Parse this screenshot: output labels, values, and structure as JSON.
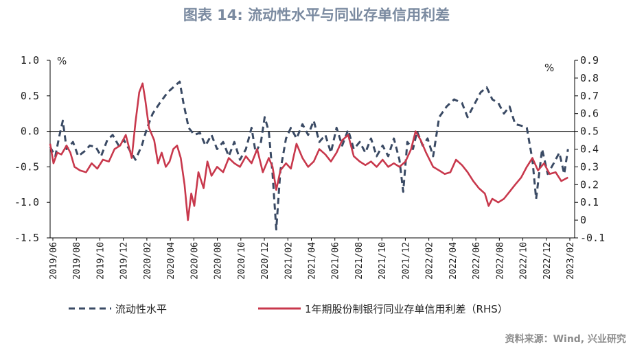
{
  "header": {
    "title": "图表 14: 流动性水平与同业存单信用利差"
  },
  "footer": {
    "source": "资料来源：Wind, 兴业研究"
  },
  "colors": {
    "liquidity": "#3a4a64",
    "spread": "#c8384c",
    "axis": "#000000"
  },
  "chart_data": {
    "type": "line",
    "title": "图表 14: 流动性水平与同业存单信用利差",
    "xlabel": "",
    "ylabel": "%",
    "y2label": "%",
    "x_tick_labels": [
      "2019/06",
      "2019/08",
      "2019/10",
      "2019/12",
      "2020/02",
      "2020/04",
      "2020/06",
      "2020/08",
      "2020/10",
      "2020/12",
      "2021/02",
      "2021/04",
      "2021/06",
      "2021/08",
      "2021/10",
      "2021/12",
      "2022/02",
      "2022/04",
      "2022/06",
      "2022/08",
      "2022/10",
      "2022/12",
      "2023/02"
    ],
    "y_ticks": [
      "1.0",
      "0.5",
      "0.0",
      "-0.5",
      "-1.0",
      "-1.5"
    ],
    "y2_ticks": [
      "0.9",
      "0.8",
      "0.7",
      "0.6",
      "0.5",
      "0.4",
      "0.3",
      "0.2",
      "0.1",
      "0",
      "-0.1"
    ],
    "ylim": [
      -1.5,
      1.0
    ],
    "y2lim": [
      -0.1,
      0.9
    ],
    "grid": false,
    "legend_position": "bottom",
    "series": [
      {
        "name": "流动性水平",
        "axis": "left",
        "style": "dashed",
        "points": [
          [
            "2019/06/01",
            -0.22
          ],
          [
            "2019/06/15",
            -0.35
          ],
          [
            "2019/06/25",
            -0.08
          ],
          [
            "2019/07/05",
            0.15
          ],
          [
            "2019/07/15",
            -0.25
          ],
          [
            "2019/08/01",
            -0.15
          ],
          [
            "2019/08/15",
            -0.35
          ],
          [
            "2019/09/01",
            -0.28
          ],
          [
            "2019/09/15",
            -0.2
          ],
          [
            "2019/10/01",
            -0.22
          ],
          [
            "2019/10/15",
            -0.35
          ],
          [
            "2019/11/01",
            -0.12
          ],
          [
            "2019/11/15",
            -0.05
          ],
          [
            "2019/12/01",
            -0.2
          ],
          [
            "2019/12/15",
            -0.12
          ],
          [
            "2020/01/01",
            -0.28
          ],
          [
            "2020/01/15",
            -0.4
          ],
          [
            "2020/02/01",
            -0.2
          ],
          [
            "2020/02/15",
            0.05
          ],
          [
            "2020/03/01",
            0.25
          ],
          [
            "2020/03/20",
            0.4
          ],
          [
            "2020/04/10",
            0.55
          ],
          [
            "2020/05/01",
            0.65
          ],
          [
            "2020/05/12",
            0.7
          ],
          [
            "2020/05/22",
            0.4
          ],
          [
            "2020/06/05",
            0.05
          ],
          [
            "2020/06/20",
            -0.05
          ],
          [
            "2020/07/05",
            -0.02
          ],
          [
            "2020/07/20",
            -0.2
          ],
          [
            "2020/08/05",
            -0.05
          ],
          [
            "2020/08/20",
            -0.25
          ],
          [
            "2020/09/05",
            -0.15
          ],
          [
            "2020/09/20",
            -0.35
          ],
          [
            "2020/10/05",
            -0.15
          ],
          [
            "2020/10/20",
            -0.4
          ],
          [
            "2020/11/05",
            -0.25
          ],
          [
            "2020/11/20",
            0.05
          ],
          [
            "2020/12/01",
            -0.3
          ],
          [
            "2020/12/15",
            -0.15
          ],
          [
            "2020/12/25",
            0.2
          ],
          [
            "2021/01/05",
            0.0
          ],
          [
            "2021/01/15",
            -0.6
          ],
          [
            "2021/01/25",
            -1.38
          ],
          [
            "2021/02/05",
            -0.55
          ],
          [
            "2021/02/20",
            -0.1
          ],
          [
            "2021/03/05",
            0.05
          ],
          [
            "2021/03/20",
            -0.1
          ],
          [
            "2021/04/05",
            0.1
          ],
          [
            "2021/04/20",
            -0.05
          ],
          [
            "2021/05/05",
            0.15
          ],
          [
            "2021/05/20",
            -0.15
          ],
          [
            "2021/06/05",
            -0.05
          ],
          [
            "2021/06/20",
            -0.3
          ],
          [
            "2021/07/05",
            0.05
          ],
          [
            "2021/07/20",
            -0.2
          ],
          [
            "2021/08/05",
            0.02
          ],
          [
            "2021/08/20",
            -0.25
          ],
          [
            "2021/09/05",
            -0.15
          ],
          [
            "2021/09/20",
            -0.3
          ],
          [
            "2021/10/05",
            -0.1
          ],
          [
            "2021/10/20",
            -0.35
          ],
          [
            "2021/11/05",
            -0.2
          ],
          [
            "2021/11/20",
            -0.35
          ],
          [
            "2021/12/05",
            -0.1
          ],
          [
            "2021/12/20",
            -0.4
          ],
          [
            "2021/12/30",
            -0.85
          ],
          [
            "2022/01/10",
            -0.15
          ],
          [
            "2022/01/25",
            -0.25
          ],
          [
            "2022/02/05",
            0.0
          ],
          [
            "2022/02/20",
            -0.2
          ],
          [
            "2022/03/05",
            -0.1
          ],
          [
            "2022/03/20",
            -0.35
          ],
          [
            "2022/04/05",
            0.2
          ],
          [
            "2022/04/25",
            0.35
          ],
          [
            "2022/05/15",
            0.45
          ],
          [
            "2022/06/05",
            0.4
          ],
          [
            "2022/06/20",
            0.2
          ],
          [
            "2022/07/05",
            0.35
          ],
          [
            "2022/07/25",
            0.55
          ],
          [
            "2022/08/10",
            0.62
          ],
          [
            "2022/08/25",
            0.45
          ],
          [
            "2022/09/10",
            0.4
          ],
          [
            "2022/09/25",
            0.25
          ],
          [
            "2022/10/10",
            0.35
          ],
          [
            "2022/10/25",
            0.1
          ],
          [
            "2022/11/10",
            0.08
          ],
          [
            "2022/11/25",
            0.05
          ],
          [
            "2022/12/10",
            -0.4
          ],
          [
            "2022/12/20",
            -0.95
          ],
          [
            "2023/01/05",
            -0.25
          ],
          [
            "2023/01/20",
            -0.6
          ],
          [
            "2023/02/05",
            -0.45
          ],
          [
            "2023/02/20",
            -0.3
          ],
          [
            "2023/03/05",
            -0.6
          ],
          [
            "2023/03/15",
            -0.25
          ]
        ]
      },
      {
        "name": "1年期股份制银行同业存单信用利差（RHS）",
        "axis": "right",
        "style": "solid",
        "points": [
          [
            "2019/06/01",
            0.43
          ],
          [
            "2019/06/10",
            0.32
          ],
          [
            "2019/06/20",
            0.38
          ],
          [
            "2019/07/01",
            0.37
          ],
          [
            "2019/07/15",
            0.42
          ],
          [
            "2019/07/25",
            0.38
          ],
          [
            "2019/08/05",
            0.3
          ],
          [
            "2019/08/20",
            0.28
          ],
          [
            "2019/09/05",
            0.27
          ],
          [
            "2019/09/20",
            0.32
          ],
          [
            "2019/10/05",
            0.29
          ],
          [
            "2019/10/20",
            0.34
          ],
          [
            "2019/11/05",
            0.33
          ],
          [
            "2019/11/20",
            0.4
          ],
          [
            "2019/12/05",
            0.42
          ],
          [
            "2019/12/20",
            0.48
          ],
          [
            "2020/01/05",
            0.35
          ],
          [
            "2020/01/15",
            0.55
          ],
          [
            "2020/01/25",
            0.72
          ],
          [
            "2020/02/03",
            0.77
          ],
          [
            "2020/02/10",
            0.68
          ],
          [
            "2020/02/20",
            0.52
          ],
          [
            "2020/03/05",
            0.45
          ],
          [
            "2020/03/15",
            0.32
          ],
          [
            "2020/03/25",
            0.38
          ],
          [
            "2020/04/05",
            0.3
          ],
          [
            "2020/04/15",
            0.33
          ],
          [
            "2020/04/25",
            0.4
          ],
          [
            "2020/05/05",
            0.42
          ],
          [
            "2020/05/15",
            0.35
          ],
          [
            "2020/05/25",
            0.2
          ],
          [
            "2020/06/03",
            0.0
          ],
          [
            "2020/06/12",
            0.15
          ],
          [
            "2020/06/20",
            0.08
          ],
          [
            "2020/07/01",
            0.27
          ],
          [
            "2020/07/15",
            0.18
          ],
          [
            "2020/07/25",
            0.33
          ],
          [
            "2020/08/05",
            0.25
          ],
          [
            "2020/08/20",
            0.3
          ],
          [
            "2020/09/05",
            0.27
          ],
          [
            "2020/09/20",
            0.35
          ],
          [
            "2020/10/05",
            0.32
          ],
          [
            "2020/10/20",
            0.3
          ],
          [
            "2020/11/05",
            0.36
          ],
          [
            "2020/11/20",
            0.32
          ],
          [
            "2020/12/05",
            0.4
          ],
          [
            "2020/12/20",
            0.27
          ],
          [
            "2021/01/05",
            0.35
          ],
          [
            "2021/01/15",
            0.3
          ],
          [
            "2021/01/25",
            0.17
          ],
          [
            "2021/02/05",
            0.28
          ],
          [
            "2021/02/20",
            0.32
          ],
          [
            "2021/03/05",
            0.29
          ],
          [
            "2021/03/20",
            0.43
          ],
          [
            "2021/04/05",
            0.35
          ],
          [
            "2021/04/20",
            0.3
          ],
          [
            "2021/05/05",
            0.33
          ],
          [
            "2021/05/20",
            0.4
          ],
          [
            "2021/06/05",
            0.37
          ],
          [
            "2021/06/20",
            0.33
          ],
          [
            "2021/07/05",
            0.38
          ],
          [
            "2021/07/20",
            0.45
          ],
          [
            "2021/08/05",
            0.48
          ],
          [
            "2021/08/20",
            0.36
          ],
          [
            "2021/09/05",
            0.33
          ],
          [
            "2021/09/20",
            0.31
          ],
          [
            "2021/10/05",
            0.33
          ],
          [
            "2021/10/20",
            0.3
          ],
          [
            "2021/11/05",
            0.34
          ],
          [
            "2021/11/20",
            0.3
          ],
          [
            "2021/12/05",
            0.32
          ],
          [
            "2021/12/20",
            0.3
          ],
          [
            "2022/01/05",
            0.33
          ],
          [
            "2022/01/20",
            0.4
          ],
          [
            "2022/02/01",
            0.5
          ],
          [
            "2022/02/15",
            0.45
          ],
          [
            "2022/03/01",
            0.38
          ],
          [
            "2022/03/20",
            0.3
          ],
          [
            "2022/04/05",
            0.28
          ],
          [
            "2022/04/20",
            0.26
          ],
          [
            "2022/05/05",
            0.27
          ],
          [
            "2022/05/20",
            0.34
          ],
          [
            "2022/06/05",
            0.31
          ],
          [
            "2022/06/20",
            0.27
          ],
          [
            "2022/07/05",
            0.22
          ],
          [
            "2022/07/20",
            0.18
          ],
          [
            "2022/08/05",
            0.15
          ],
          [
            "2022/08/15",
            0.08
          ],
          [
            "2022/08/25",
            0.12
          ],
          [
            "2022/09/10",
            0.1
          ],
          [
            "2022/09/25",
            0.12
          ],
          [
            "2022/10/10",
            0.16
          ],
          [
            "2022/10/25",
            0.2
          ],
          [
            "2022/11/10",
            0.24
          ],
          [
            "2022/11/25",
            0.3
          ],
          [
            "2022/12/10",
            0.35
          ],
          [
            "2022/12/25",
            0.28
          ],
          [
            "2023/01/10",
            0.32
          ],
          [
            "2023/01/25",
            0.26
          ],
          [
            "2023/02/10",
            0.27
          ],
          [
            "2023/02/25",
            0.22
          ],
          [
            "2023/03/15",
            0.24
          ]
        ]
      }
    ]
  }
}
